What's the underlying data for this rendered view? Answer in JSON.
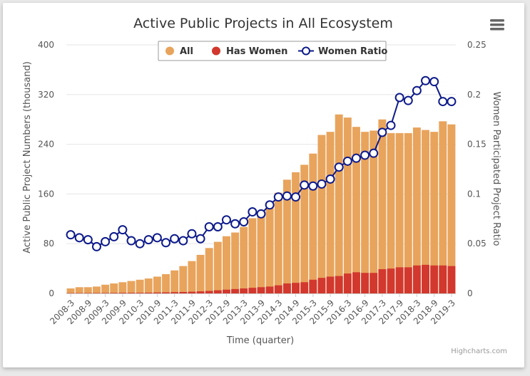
{
  "chart_data": {
    "type": "bar",
    "title": "Active Public Projects in All Ecosystem",
    "xlabel": "Time (quarter)",
    "ylabel": "Active Public Project Numbers (thousand)",
    "ylabel_right": "Women Participated Project Ratio",
    "ylim": [
      0,
      400
    ],
    "ylim_right": [
      0,
      0.25
    ],
    "yticks": [
      "0",
      "80",
      "160",
      "240",
      "320",
      "400"
    ],
    "yticks_right": [
      "0",
      "0.05",
      "0.1",
      "0.15",
      "0.2",
      "0.25"
    ],
    "grid": true,
    "legend_position": "top",
    "credits": "Highcharts.com",
    "categories": [
      "2008-3",
      "2008-6",
      "2008-9",
      "2008-12",
      "2009-3",
      "2009-6",
      "2009-9",
      "2009-12",
      "2010-3",
      "2010-6",
      "2010-9",
      "2010-12",
      "2011-3",
      "2011-6",
      "2011-9",
      "2011-12",
      "2012-3",
      "2012-6",
      "2012-9",
      "2012-12",
      "2013-3",
      "2013-6",
      "2013-9",
      "2013-12",
      "2014-3",
      "2014-6",
      "2014-9",
      "2014-12",
      "2015-3",
      "2015-6",
      "2015-9",
      "2015-12",
      "2016-3",
      "2016-6",
      "2016-9",
      "2016-12",
      "2017-3",
      "2017-6",
      "2017-9",
      "2017-12",
      "2018-3",
      "2018-6",
      "2018-9",
      "2018-12",
      "2019-3"
    ],
    "x_tick_labels": [
      "2008-3",
      "2008-9",
      "2009-3",
      "2009-9",
      "2010-3",
      "2010-9",
      "2011-3",
      "2011-9",
      "2012-3",
      "2012-9",
      "2013-3",
      "2013-9",
      "2014-3",
      "2014-9",
      "2015-3",
      "2015-9",
      "2016-3",
      "2016-9",
      "2017-3",
      "2017-9",
      "2018-3",
      "2018-9",
      "2019-3"
    ],
    "series": [
      {
        "name": "All",
        "type": "bar",
        "color": "#e8a45c",
        "values": [
          8,
          10,
          10,
          11,
          14,
          16,
          18,
          20,
          22,
          24,
          27,
          31,
          37,
          44,
          52,
          62,
          73,
          83,
          92,
          98,
          107,
          121,
          131,
          145,
          162,
          183,
          195,
          207,
          225,
          255,
          260,
          288,
          283,
          268,
          260,
          262,
          280,
          258,
          258,
          258,
          267,
          263,
          260,
          277,
          272
        ]
      },
      {
        "name": "Has Women",
        "type": "bar",
        "color": "#d2382d",
        "values": [
          0.5,
          0.5,
          0.6,
          0.6,
          0.7,
          0.8,
          1,
          1,
          1,
          1.2,
          1.5,
          1.7,
          2,
          2.3,
          2.7,
          3.3,
          4,
          5,
          6,
          7,
          8,
          9,
          10,
          11,
          13,
          16,
          17,
          18,
          22,
          25,
          27,
          28,
          32,
          34,
          33,
          33,
          39,
          40,
          42,
          42,
          45,
          46,
          45,
          45,
          44
        ]
      },
      {
        "name": "Women Ratio",
        "type": "line",
        "color": "#0d1a8a",
        "values": [
          0.059,
          0.056,
          0.054,
          0.047,
          0.052,
          0.057,
          0.064,
          0.053,
          0.05,
          0.054,
          0.056,
          0.051,
          0.055,
          0.053,
          0.06,
          0.055,
          0.067,
          0.067,
          0.074,
          0.07,
          0.072,
          0.082,
          0.08,
          0.089,
          0.097,
          0.098,
          0.097,
          0.109,
          0.108,
          0.11,
          0.115,
          0.127,
          0.133,
          0.136,
          0.139,
          0.141,
          0.162,
          0.169,
          0.197,
          0.194,
          0.204,
          0.214,
          0.213,
          0.193,
          0.193
        ]
      }
    ]
  }
}
